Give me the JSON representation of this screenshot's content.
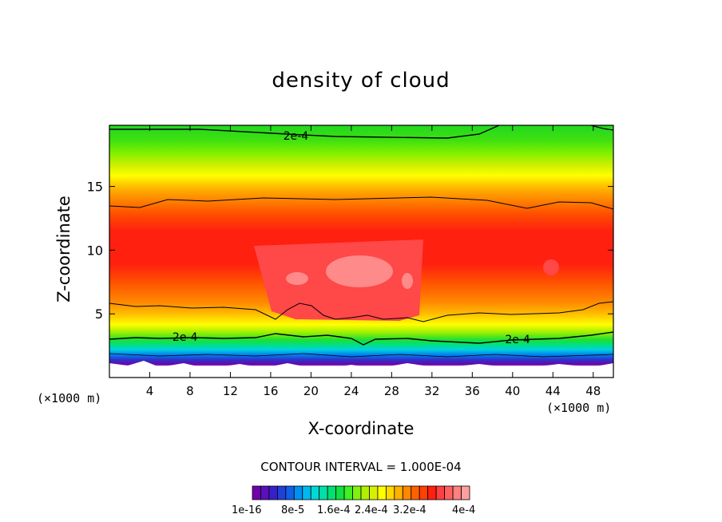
{
  "chart_data": {
    "type": "heatmap",
    "title": "density of cloud",
    "xlabel": "X-coordinate",
    "ylabel": "Z-coordinate",
    "x_unit_left": "(×1000 m)",
    "x_unit_right": "(×1000 m)",
    "xlim": [
      0,
      50
    ],
    "ylim": [
      0,
      19.8
    ],
    "x_ticks": [
      4,
      8,
      12,
      16,
      20,
      24,
      28,
      32,
      36,
      40,
      44,
      48
    ],
    "y_ticks": [
      5,
      10,
      15
    ],
    "contour_interval_text": "CONTOUR INTERVAL = 1.000E-04",
    "contour_label": "2e-4",
    "contour_labels": [
      {
        "text": "2e-4",
        "x": 18.5,
        "y": 19.0
      },
      {
        "text": "2e-4",
        "x": 7.5,
        "y": 3.2
      },
      {
        "text": "2e-4",
        "x": 40.5,
        "y": 3.0
      }
    ],
    "colorbar_labels": [
      "1e-16",
      "8e-5",
      "1.6e-4",
      "2.4e-4",
      "3.2e-4",
      "4e-4"
    ],
    "colorbar_colors": [
      "#7000a8",
      "#5a10b8",
      "#3820c8",
      "#2040d8",
      "#1060e8",
      "#0090f0",
      "#00b8f0",
      "#00d8d8",
      "#00e0a8",
      "#00e070",
      "#10e040",
      "#40f020",
      "#80f010",
      "#b0f000",
      "#d8f000",
      "#ffff00",
      "#ffd800",
      "#ffb000",
      "#ff8800",
      "#ff6000",
      "#ff4000",
      "#ff2010",
      "#ff4040",
      "#ff6060",
      "#ff8080",
      "#ffa0a0"
    ],
    "grid": false
  }
}
